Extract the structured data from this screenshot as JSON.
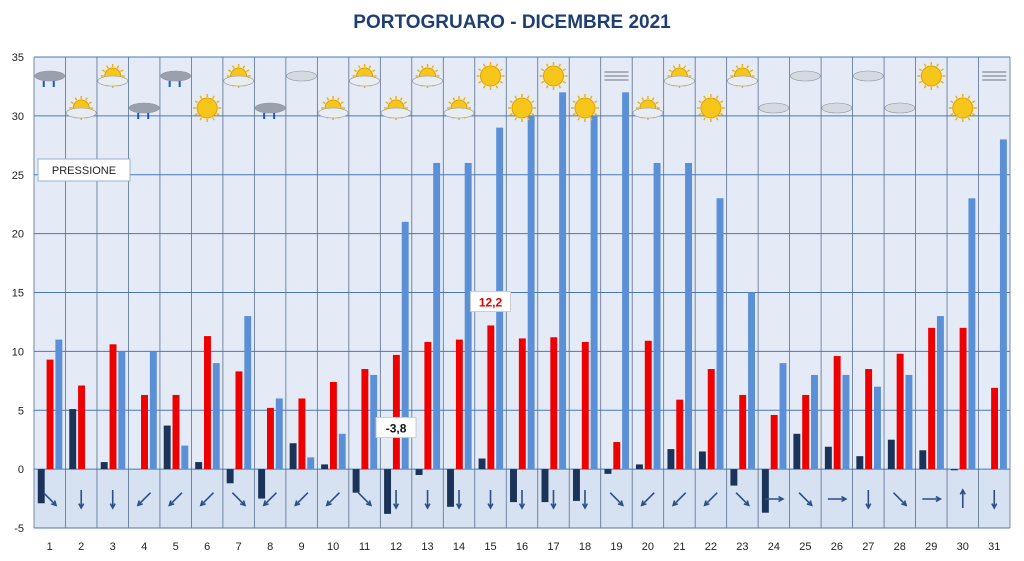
{
  "chart_data": {
    "type": "bar",
    "title": "PORTOGRUARO - DICEMBRE 2021",
    "xlabel": "",
    "ylabel": "",
    "ylim": [
      -5,
      35
    ],
    "yticks": [
      35,
      30,
      25,
      20,
      15,
      10,
      5,
      0,
      -5
    ],
    "grid": true,
    "categories": [
      "1",
      "2",
      "3",
      "4",
      "5",
      "6",
      "7",
      "8",
      "9",
      "10",
      "11",
      "12",
      "13",
      "14",
      "15",
      "16",
      "17",
      "18",
      "19",
      "20",
      "21",
      "22",
      "23",
      "24",
      "25",
      "26",
      "27",
      "28",
      "29",
      "30",
      "31"
    ],
    "series": [
      {
        "values": [
          -2.9,
          5.1,
          0.6,
          0.0,
          3.7,
          0.6,
          -1.2,
          -2.5,
          2.2,
          0.4,
          -2.0,
          -3.8,
          -0.5,
          -3.2,
          0.9,
          -2.8,
          -2.8,
          -2.7,
          -0.4,
          0.4,
          1.7,
          1.5,
          -1.4,
          -3.7,
          3.0,
          1.9,
          1.1,
          2.5,
          1.6,
          -0.1,
          0.0
        ]
      },
      {
        "values": [
          9.3,
          7.1,
          10.6,
          6.3,
          6.3,
          11.3,
          8.3,
          5.2,
          6.0,
          7.4,
          8.5,
          9.7,
          10.8,
          11.0,
          12.2,
          11.1,
          11.2,
          10.8,
          2.3,
          10.9,
          5.9,
          8.5,
          6.3,
          4.6,
          6.3,
          9.6,
          8.5,
          9.8,
          12.0,
          12.0,
          6.9
        ]
      },
      {
        "values": [
          11,
          0,
          10,
          10,
          2,
          9,
          13,
          6,
          1,
          3,
          8,
          21,
          26,
          26,
          29,
          30,
          32,
          30,
          32,
          26,
          26,
          23,
          15,
          9,
          8,
          8,
          7,
          8,
          13,
          23,
          28
        ]
      }
    ],
    "annotations": [
      {
        "day": "15",
        "text": "12,2",
        "color": "#e00000"
      },
      {
        "day": "12",
        "text": "-3,8",
        "color": "#111111"
      }
    ],
    "legend_label": "PRESSIONE",
    "weather_icons": [
      "rain",
      "sun-cloud",
      "sun-cloud",
      "rain",
      "rain",
      "sun",
      "sun-cloud",
      "rain",
      "cloud",
      "sun-cloud",
      "sun-cloud",
      "sun-cloud",
      "sun-cloud",
      "sun-cloud",
      "sun",
      "sun",
      "sun",
      "sun",
      "fog",
      "sun-cloud",
      "sun-cloud",
      "sun",
      "sun-cloud",
      "cloud",
      "cloud",
      "cloud",
      "cloud",
      "cloud",
      "sun",
      "sun",
      "fog"
    ],
    "wind_arrows": [
      "se",
      "s",
      "s",
      "sw",
      "sw",
      "sw",
      "se",
      "sw",
      "sw",
      "sw",
      "se",
      "s",
      "s",
      "s",
      "s",
      "s",
      "s",
      "s",
      "se",
      "sw",
      "sw",
      "sw",
      "se",
      "e",
      "se",
      "e",
      "s",
      "se",
      "e",
      "n",
      "s"
    ],
    "colors": {
      "min": "#1b3358",
      "max": "#ee0000",
      "pressure": "#5b8fd6",
      "plot_bg": "#e4ebf6",
      "lower_band": "#d6e1f1",
      "grid": "#4a78b8",
      "title": "#1f3f73"
    }
  }
}
